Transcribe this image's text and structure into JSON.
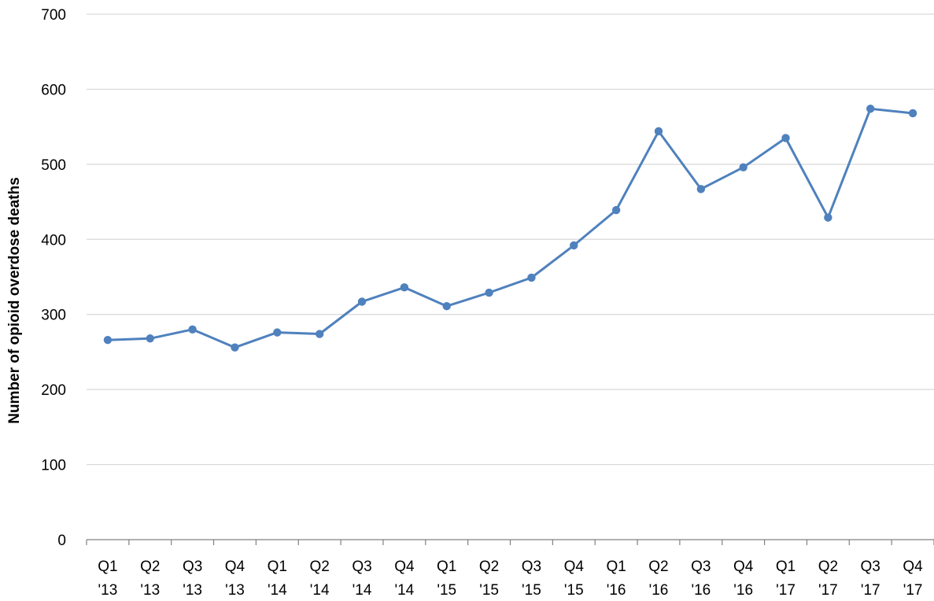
{
  "chart_data": {
    "type": "line",
    "title": "",
    "xlabel": "",
    "ylabel": "Number of opioid overdose deaths",
    "ylim": [
      0,
      700
    ],
    "yticks": [
      0,
      100,
      200,
      300,
      400,
      500,
      600,
      700
    ],
    "grid": true,
    "legend": "none",
    "categories": [
      [
        "Q1",
        "'13"
      ],
      [
        "Q2",
        "'13"
      ],
      [
        "Q3",
        "'13"
      ],
      [
        "Q4",
        "'13"
      ],
      [
        "Q1",
        "'14"
      ],
      [
        "Q2",
        "'14"
      ],
      [
        "Q3",
        "'14"
      ],
      [
        "Q4",
        "'14"
      ],
      [
        "Q1",
        "'15"
      ],
      [
        "Q2",
        "'15"
      ],
      [
        "Q3",
        "'15"
      ],
      [
        "Q4",
        "'15"
      ],
      [
        "Q1",
        "'16"
      ],
      [
        "Q2",
        "'16"
      ],
      [
        "Q3",
        "'16"
      ],
      [
        "Q4",
        "'16"
      ],
      [
        "Q1",
        "'17"
      ],
      [
        "Q2",
        "'17"
      ],
      [
        "Q3",
        "'17"
      ],
      [
        "Q4",
        "'17"
      ]
    ],
    "series": [
      {
        "values": [
          266,
          268,
          280,
          256,
          276,
          274,
          317,
          336,
          311,
          329,
          349,
          392,
          439,
          544,
          467,
          496,
          535,
          429,
          574,
          568
        ]
      }
    ],
    "colors": {
      "line": "#4f81bd",
      "grid": "#d9d9d9",
      "axis": "#808080"
    }
  }
}
